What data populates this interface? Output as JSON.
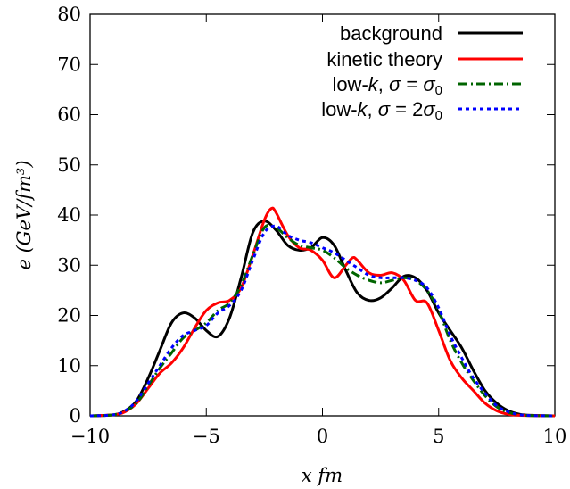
{
  "chart_data": {
    "type": "line",
    "xlabel": "x fm",
    "ylabel": "e (GeV/fm³)",
    "xlim": [
      -10,
      10
    ],
    "ylim": [
      0,
      80
    ],
    "xticks": [
      -10,
      -5,
      0,
      5,
      10
    ],
    "xtick_labels": [
      "−10",
      "−5",
      "0",
      "5",
      "10"
    ],
    "yticks": [
      0,
      10,
      20,
      30,
      40,
      50,
      60,
      70,
      80
    ],
    "ytick_labels": [
      "0",
      "10",
      "20",
      "30",
      "40",
      "50",
      "60",
      "70",
      "80"
    ],
    "grid": false,
    "legend_position": "top-right",
    "series": [
      {
        "name": "background",
        "color": "#000000",
        "dash": "solid",
        "x": [
          -10,
          -9,
          -8.5,
          -8,
          -7.5,
          -7,
          -6.5,
          -6,
          -5.5,
          -5,
          -4.5,
          -4,
          -3.5,
          -3,
          -2.5,
          -2,
          -1.5,
          -1,
          -0.5,
          0,
          0.5,
          1,
          1.5,
          2,
          2.5,
          3,
          3.5,
          4,
          4.5,
          5,
          5.5,
          6,
          6.5,
          7,
          7.5,
          8,
          8.5,
          9,
          10
        ],
        "y": [
          0,
          0.2,
          1,
          3,
          7.5,
          13,
          18.5,
          20.5,
          19.5,
          17,
          15.8,
          19.5,
          27.5,
          36.5,
          38.8,
          37,
          34,
          33,
          33.5,
          35.5,
          34,
          29,
          24.5,
          23,
          23.5,
          25.5,
          27.8,
          27.5,
          25,
          20.5,
          17,
          13.5,
          9,
          5,
          2.5,
          1,
          0.3,
          0.1,
          0
        ]
      },
      {
        "name": "kinetic theory",
        "color": "#ff0000",
        "dash": "solid",
        "x": [
          -10,
          -9,
          -8.5,
          -8,
          -7.5,
          -7,
          -6.5,
          -6,
          -5.5,
          -5,
          -4.5,
          -4,
          -3.5,
          -3,
          -2.5,
          -2.2,
          -2,
          -1.5,
          -1,
          -0.5,
          0,
          0.5,
          1,
          1.3,
          1.5,
          2,
          2.5,
          3,
          3.5,
          4,
          4.5,
          5,
          5.5,
          6,
          6.5,
          7,
          7.5,
          8,
          8.5,
          9,
          10
        ],
        "y": [
          0,
          0.2,
          0.8,
          2.5,
          5.5,
          8.5,
          10.5,
          13.5,
          17.5,
          21,
          22.5,
          23,
          25.5,
          32,
          39,
          41.3,
          40.5,
          36,
          33.5,
          33,
          31,
          27.5,
          30,
          31.5,
          31,
          28.5,
          28,
          28.5,
          27,
          23,
          22.5,
          17,
          11,
          7.5,
          5,
          2.5,
          1,
          0.3,
          0.1,
          0.05,
          0
        ]
      },
      {
        "name": "low-k, σ = σ₀",
        "color": "#006400",
        "dash": "dashdot",
        "x": [
          -10,
          -9,
          -8.5,
          -8,
          -7.5,
          -7,
          -6.5,
          -6,
          -5.5,
          -5,
          -4.5,
          -4,
          -3.5,
          -3,
          -2.5,
          -2,
          -1.5,
          -1,
          -0.5,
          0,
          0.5,
          1,
          1.5,
          2,
          2.5,
          3,
          3.5,
          4,
          4.5,
          5,
          5.5,
          6,
          6.5,
          7,
          7.5,
          8,
          8.5,
          9,
          10
        ],
        "y": [
          0,
          0.2,
          1,
          2.5,
          6,
          9.5,
          12.5,
          15.5,
          17,
          18.5,
          21,
          22.5,
          26,
          32,
          37.5,
          37.5,
          35.5,
          34,
          33.5,
          33,
          31.5,
          29.5,
          28,
          27,
          26.5,
          27,
          27.5,
          27,
          25,
          21,
          15,
          10.5,
          7,
          4,
          1.8,
          0.7,
          0.2,
          0.05,
          0
        ]
      },
      {
        "name": "low-k, σ = 2σ₀",
        "color": "#0000ff",
        "dash": "dotted",
        "x": [
          -10,
          -9,
          -8.5,
          -8,
          -7.5,
          -7,
          -6.5,
          -6,
          -5.5,
          -5,
          -4.5,
          -4,
          -3.5,
          -3,
          -2.5,
          -2,
          -1.5,
          -1,
          -0.5,
          0,
          0.5,
          1,
          1.5,
          2,
          2.5,
          3,
          3.5,
          4,
          4.5,
          5,
          5.5,
          6,
          6.5,
          7,
          7.5,
          8,
          8.5,
          9,
          10
        ],
        "y": [
          0,
          0.2,
          1,
          3,
          6.5,
          10,
          13.5,
          16,
          17,
          18,
          20.5,
          22,
          25,
          31,
          36.5,
          37.8,
          36,
          35,
          34.5,
          33.5,
          32.5,
          31,
          29.5,
          28,
          27.5,
          27.5,
          27.5,
          27,
          25.5,
          21.5,
          16,
          11.5,
          7.5,
          4.5,
          2,
          0.8,
          0.2,
          0.05,
          0
        ]
      }
    ]
  }
}
